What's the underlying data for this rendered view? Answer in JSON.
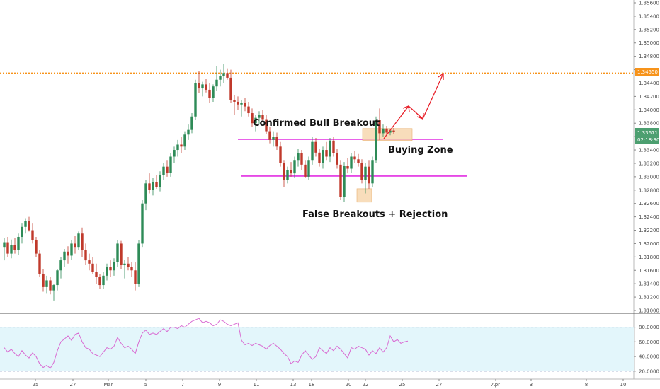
{
  "colors": {
    "bull": "#2e8b57",
    "bear": "#c0392b",
    "zone_line": "#e22ee2",
    "resistance": "#f7931a",
    "arrow": "#e8202a",
    "zone_fill": "#f6d2a4",
    "rsi_band": "#e3f6fb",
    "rsi_line": "#d96ad2",
    "price_tag": "#4c9f70"
  },
  "chart_data": [
    {
      "type": "candlestick",
      "title": "",
      "ylim": [
        1.31,
        1.356
      ],
      "y_ticks": [
        "1.35600",
        "1.35400",
        "1.35200",
        "1.35000",
        "1.34800",
        "1.34600",
        "1.34400",
        "1.34200",
        "1.34000",
        "1.33800",
        "1.33600",
        "1.33400",
        "1.33200",
        "1.33000",
        "1.32800",
        "1.32600",
        "1.32400",
        "1.32200",
        "1.32000",
        "1.31800",
        "1.31600",
        "1.31400",
        "1.31200",
        "1.31000"
      ],
      "x_ticks": [
        "25",
        "27",
        "Mar",
        "5",
        "7",
        "9",
        "11",
        "13",
        "18",
        "20",
        "22",
        "25",
        "27",
        "Apr",
        "3",
        "8",
        "10"
      ],
      "resistance": {
        "value": 1.3455,
        "label": "1.34550"
      },
      "current_price": {
        "value": 1.3367,
        "label": "1.33671",
        "countdown": "02:18:30"
      },
      "zone_lines": [
        {
          "name": "upper",
          "value": 1.3356
        },
        {
          "name": "lower",
          "value": 1.3301
        }
      ],
      "annotations": [
        {
          "name": "confirmed-bull-breakout",
          "text": "Confirmed Bull Breakout"
        },
        {
          "name": "buying-zone",
          "text": "Buying Zone"
        },
        {
          "name": "false-breakouts",
          "text": "False Breakouts + Rejection"
        }
      ],
      "candles": [
        {
          "o": 1.3195,
          "h": 1.3208,
          "l": 1.3175,
          "c": 1.3202
        },
        {
          "o": 1.3202,
          "h": 1.321,
          "l": 1.318,
          "c": 1.3185
        },
        {
          "o": 1.3185,
          "h": 1.3206,
          "l": 1.3178,
          "c": 1.3198
        },
        {
          "o": 1.3198,
          "h": 1.3208,
          "l": 1.3185,
          "c": 1.319
        },
        {
          "o": 1.319,
          "h": 1.3215,
          "l": 1.3183,
          "c": 1.321
        },
        {
          "o": 1.321,
          "h": 1.323,
          "l": 1.32,
          "c": 1.3225
        },
        {
          "o": 1.3225,
          "h": 1.3238,
          "l": 1.3215,
          "c": 1.3234
        },
        {
          "o": 1.3234,
          "h": 1.324,
          "l": 1.3218,
          "c": 1.322
        },
        {
          "o": 1.322,
          "h": 1.323,
          "l": 1.32,
          "c": 1.3205
        },
        {
          "o": 1.3205,
          "h": 1.321,
          "l": 1.318,
          "c": 1.3185
        },
        {
          "o": 1.3185,
          "h": 1.319,
          "l": 1.315,
          "c": 1.3155
        },
        {
          "o": 1.3155,
          "h": 1.3162,
          "l": 1.3128,
          "c": 1.3135
        },
        {
          "o": 1.3135,
          "h": 1.3152,
          "l": 1.3126,
          "c": 1.3145
        },
        {
          "o": 1.3145,
          "h": 1.315,
          "l": 1.3124,
          "c": 1.313
        },
        {
          "o": 1.313,
          "h": 1.314,
          "l": 1.3115,
          "c": 1.3138
        },
        {
          "o": 1.3138,
          "h": 1.3162,
          "l": 1.313,
          "c": 1.316
        },
        {
          "o": 1.316,
          "h": 1.318,
          "l": 1.3148,
          "c": 1.3175
        },
        {
          "o": 1.3175,
          "h": 1.3192,
          "l": 1.3165,
          "c": 1.3188
        },
        {
          "o": 1.3188,
          "h": 1.3196,
          "l": 1.317,
          "c": 1.3182
        },
        {
          "o": 1.3182,
          "h": 1.3205,
          "l": 1.3176,
          "c": 1.32
        },
        {
          "o": 1.32,
          "h": 1.3212,
          "l": 1.3185,
          "c": 1.3195
        },
        {
          "o": 1.3195,
          "h": 1.3218,
          "l": 1.319,
          "c": 1.3215
        },
        {
          "o": 1.3215,
          "h": 1.3224,
          "l": 1.318,
          "c": 1.319
        },
        {
          "o": 1.319,
          "h": 1.32,
          "l": 1.3168,
          "c": 1.3175
        },
        {
          "o": 1.3175,
          "h": 1.3185,
          "l": 1.316,
          "c": 1.317
        },
        {
          "o": 1.317,
          "h": 1.318,
          "l": 1.3155,
          "c": 1.3158
        },
        {
          "o": 1.3158,
          "h": 1.317,
          "l": 1.314,
          "c": 1.315
        },
        {
          "o": 1.315,
          "h": 1.3155,
          "l": 1.3132,
          "c": 1.3138
        },
        {
          "o": 1.3138,
          "h": 1.3158,
          "l": 1.3132,
          "c": 1.3152
        },
        {
          "o": 1.3152,
          "h": 1.317,
          "l": 1.3145,
          "c": 1.3165
        },
        {
          "o": 1.3165,
          "h": 1.3175,
          "l": 1.315,
          "c": 1.316
        },
        {
          "o": 1.316,
          "h": 1.3178,
          "l": 1.3152,
          "c": 1.3172
        },
        {
          "o": 1.3172,
          "h": 1.3205,
          "l": 1.3165,
          "c": 1.32
        },
        {
          "o": 1.32,
          "h": 1.3204,
          "l": 1.3162,
          "c": 1.3168
        },
        {
          "o": 1.3168,
          "h": 1.3176,
          "l": 1.3148,
          "c": 1.317
        },
        {
          "o": 1.317,
          "h": 1.318,
          "l": 1.316,
          "c": 1.3165
        },
        {
          "o": 1.3165,
          "h": 1.3172,
          "l": 1.315,
          "c": 1.316
        },
        {
          "o": 1.316,
          "h": 1.3172,
          "l": 1.313,
          "c": 1.314
        },
        {
          "o": 1.314,
          "h": 1.3205,
          "l": 1.3135,
          "c": 1.32
        },
        {
          "o": 1.32,
          "h": 1.3265,
          "l": 1.3195,
          "c": 1.326
        },
        {
          "o": 1.326,
          "h": 1.3295,
          "l": 1.325,
          "c": 1.329
        },
        {
          "o": 1.329,
          "h": 1.3305,
          "l": 1.3275,
          "c": 1.328
        },
        {
          "o": 1.328,
          "h": 1.3298,
          "l": 1.3272,
          "c": 1.3292
        },
        {
          "o": 1.3292,
          "h": 1.3302,
          "l": 1.3282,
          "c": 1.3285
        },
        {
          "o": 1.3285,
          "h": 1.3308,
          "l": 1.3278,
          "c": 1.3303
        },
        {
          "o": 1.3303,
          "h": 1.332,
          "l": 1.3295,
          "c": 1.3315
        },
        {
          "o": 1.3315,
          "h": 1.3325,
          "l": 1.33,
          "c": 1.3306
        },
        {
          "o": 1.3306,
          "h": 1.3335,
          "l": 1.33,
          "c": 1.333
        },
        {
          "o": 1.333,
          "h": 1.3345,
          "l": 1.332,
          "c": 1.334
        },
        {
          "o": 1.334,
          "h": 1.3355,
          "l": 1.333,
          "c": 1.3348
        },
        {
          "o": 1.3348,
          "h": 1.336,
          "l": 1.3335,
          "c": 1.3345
        },
        {
          "o": 1.3345,
          "h": 1.3368,
          "l": 1.334,
          "c": 1.3363
        },
        {
          "o": 1.3363,
          "h": 1.3378,
          "l": 1.3355,
          "c": 1.337
        },
        {
          "o": 1.337,
          "h": 1.3395,
          "l": 1.3365,
          "c": 1.339
        },
        {
          "o": 1.339,
          "h": 1.3445,
          "l": 1.3385,
          "c": 1.344
        },
        {
          "o": 1.344,
          "h": 1.3458,
          "l": 1.3425,
          "c": 1.3432
        },
        {
          "o": 1.3432,
          "h": 1.3442,
          "l": 1.342,
          "c": 1.3438
        },
        {
          "o": 1.3438,
          "h": 1.3446,
          "l": 1.3426,
          "c": 1.343
        },
        {
          "o": 1.343,
          "h": 1.344,
          "l": 1.341,
          "c": 1.3418
        },
        {
          "o": 1.3418,
          "h": 1.3438,
          "l": 1.3412,
          "c": 1.3435
        },
        {
          "o": 1.3435,
          "h": 1.3465,
          "l": 1.3428,
          "c": 1.3445
        },
        {
          "o": 1.3445,
          "h": 1.346,
          "l": 1.3435,
          "c": 1.345
        },
        {
          "o": 1.345,
          "h": 1.3468,
          "l": 1.344,
          "c": 1.3455
        },
        {
          "o": 1.3455,
          "h": 1.3462,
          "l": 1.3445,
          "c": 1.3448
        },
        {
          "o": 1.3448,
          "h": 1.346,
          "l": 1.341,
          "c": 1.3415
        },
        {
          "o": 1.3415,
          "h": 1.3422,
          "l": 1.3392,
          "c": 1.3412
        },
        {
          "o": 1.3412,
          "h": 1.342,
          "l": 1.34,
          "c": 1.3408
        },
        {
          "o": 1.3408,
          "h": 1.3415,
          "l": 1.339,
          "c": 1.341
        },
        {
          "o": 1.341,
          "h": 1.3418,
          "l": 1.3398,
          "c": 1.3405
        },
        {
          "o": 1.3405,
          "h": 1.3412,
          "l": 1.339,
          "c": 1.3395
        },
        {
          "o": 1.3395,
          "h": 1.3402,
          "l": 1.3375,
          "c": 1.338
        },
        {
          "o": 1.338,
          "h": 1.3392,
          "l": 1.3368,
          "c": 1.3388
        },
        {
          "o": 1.3388,
          "h": 1.3398,
          "l": 1.3378,
          "c": 1.3392
        },
        {
          "o": 1.3392,
          "h": 1.34,
          "l": 1.3383,
          "c": 1.3386
        },
        {
          "o": 1.3386,
          "h": 1.3392,
          "l": 1.3364,
          "c": 1.3368
        },
        {
          "o": 1.3368,
          "h": 1.3375,
          "l": 1.335,
          "c": 1.3355
        },
        {
          "o": 1.3355,
          "h": 1.3368,
          "l": 1.3345,
          "c": 1.336
        },
        {
          "o": 1.336,
          "h": 1.3366,
          "l": 1.334,
          "c": 1.3345
        },
        {
          "o": 1.3345,
          "h": 1.3352,
          "l": 1.3315,
          "c": 1.332
        },
        {
          "o": 1.332,
          "h": 1.3325,
          "l": 1.3285,
          "c": 1.3295
        },
        {
          "o": 1.3295,
          "h": 1.3315,
          "l": 1.329,
          "c": 1.331
        },
        {
          "o": 1.331,
          "h": 1.3322,
          "l": 1.33,
          "c": 1.3305
        },
        {
          "o": 1.3305,
          "h": 1.333,
          "l": 1.3298,
          "c": 1.3325
        },
        {
          "o": 1.3325,
          "h": 1.3342,
          "l": 1.3315,
          "c": 1.3335
        },
        {
          "o": 1.3335,
          "h": 1.334,
          "l": 1.331,
          "c": 1.3318
        },
        {
          "o": 1.3318,
          "h": 1.3325,
          "l": 1.3298,
          "c": 1.33
        },
        {
          "o": 1.33,
          "h": 1.333,
          "l": 1.3295,
          "c": 1.3325
        },
        {
          "o": 1.3325,
          "h": 1.336,
          "l": 1.3318,
          "c": 1.3352
        },
        {
          "o": 1.3352,
          "h": 1.3358,
          "l": 1.333,
          "c": 1.3336
        },
        {
          "o": 1.3336,
          "h": 1.3342,
          "l": 1.3315,
          "c": 1.332
        },
        {
          "o": 1.332,
          "h": 1.3345,
          "l": 1.3312,
          "c": 1.334
        },
        {
          "o": 1.334,
          "h": 1.3352,
          "l": 1.3325,
          "c": 1.333
        },
        {
          "o": 1.333,
          "h": 1.3358,
          "l": 1.3322,
          "c": 1.3354
        },
        {
          "o": 1.3354,
          "h": 1.336,
          "l": 1.333,
          "c": 1.3335
        },
        {
          "o": 1.3335,
          "h": 1.3342,
          "l": 1.3312,
          "c": 1.3318
        },
        {
          "o": 1.3318,
          "h": 1.3325,
          "l": 1.3265,
          "c": 1.327
        },
        {
          "o": 1.327,
          "h": 1.3322,
          "l": 1.3262,
          "c": 1.3316
        },
        {
          "o": 1.3316,
          "h": 1.3328,
          "l": 1.3305,
          "c": 1.3312
        },
        {
          "o": 1.3312,
          "h": 1.3335,
          "l": 1.3306,
          "c": 1.333
        },
        {
          "o": 1.333,
          "h": 1.3338,
          "l": 1.332,
          "c": 1.3326
        },
        {
          "o": 1.3326,
          "h": 1.3334,
          "l": 1.3315,
          "c": 1.332
        },
        {
          "o": 1.332,
          "h": 1.3326,
          "l": 1.329,
          "c": 1.3295
        },
        {
          "o": 1.3295,
          "h": 1.332,
          "l": 1.3275,
          "c": 1.3315
        },
        {
          "o": 1.3315,
          "h": 1.3325,
          "l": 1.3282,
          "c": 1.329
        },
        {
          "o": 1.329,
          "h": 1.333,
          "l": 1.3285,
          "c": 1.3325
        },
        {
          "o": 1.3325,
          "h": 1.339,
          "l": 1.332,
          "c": 1.3385
        },
        {
          "o": 1.3385,
          "h": 1.3402,
          "l": 1.3355,
          "c": 1.3365
        },
        {
          "o": 1.3365,
          "h": 1.3378,
          "l": 1.336,
          "c": 1.3372
        },
        {
          "o": 1.3372,
          "h": 1.3376,
          "l": 1.3362,
          "c": 1.3366
        },
        {
          "o": 1.3366,
          "h": 1.3372,
          "l": 1.3362,
          "c": 1.3369
        },
        {
          "o": 1.3369,
          "h": 1.3373,
          "l": 1.3364,
          "c": 1.3367
        }
      ]
    },
    {
      "type": "line",
      "name": "",
      "ylim": [
        15,
        95
      ],
      "y_ticks": [
        "80.0000",
        "60.0000",
        "40.0000",
        "20.0000"
      ],
      "bands": [
        20,
        80
      ],
      "values": [
        52,
        46,
        50,
        44,
        40,
        48,
        42,
        38,
        45,
        40,
        30,
        25,
        28,
        24,
        32,
        48,
        60,
        64,
        68,
        62,
        70,
        72,
        60,
        52,
        50,
        44,
        42,
        40,
        46,
        52,
        50,
        54,
        66,
        58,
        52,
        54,
        50,
        44,
        60,
        72,
        76,
        70,
        72,
        70,
        74,
        78,
        74,
        80,
        80,
        78,
        82,
        80,
        84,
        88,
        90,
        92,
        86,
        88,
        86,
        82,
        84,
        90,
        88,
        84,
        82,
        84,
        86,
        62,
        56,
        58,
        55,
        58,
        56,
        54,
        50,
        55,
        58,
        54,
        50,
        44,
        40,
        30,
        34,
        32,
        42,
        48,
        42,
        36,
        40,
        52,
        48,
        44,
        52,
        48,
        54,
        50,
        44,
        38,
        52,
        50,
        54,
        52,
        50,
        42,
        48,
        44,
        52,
        46,
        52,
        68,
        60,
        63,
        58,
        60,
        61
      ]
    }
  ]
}
